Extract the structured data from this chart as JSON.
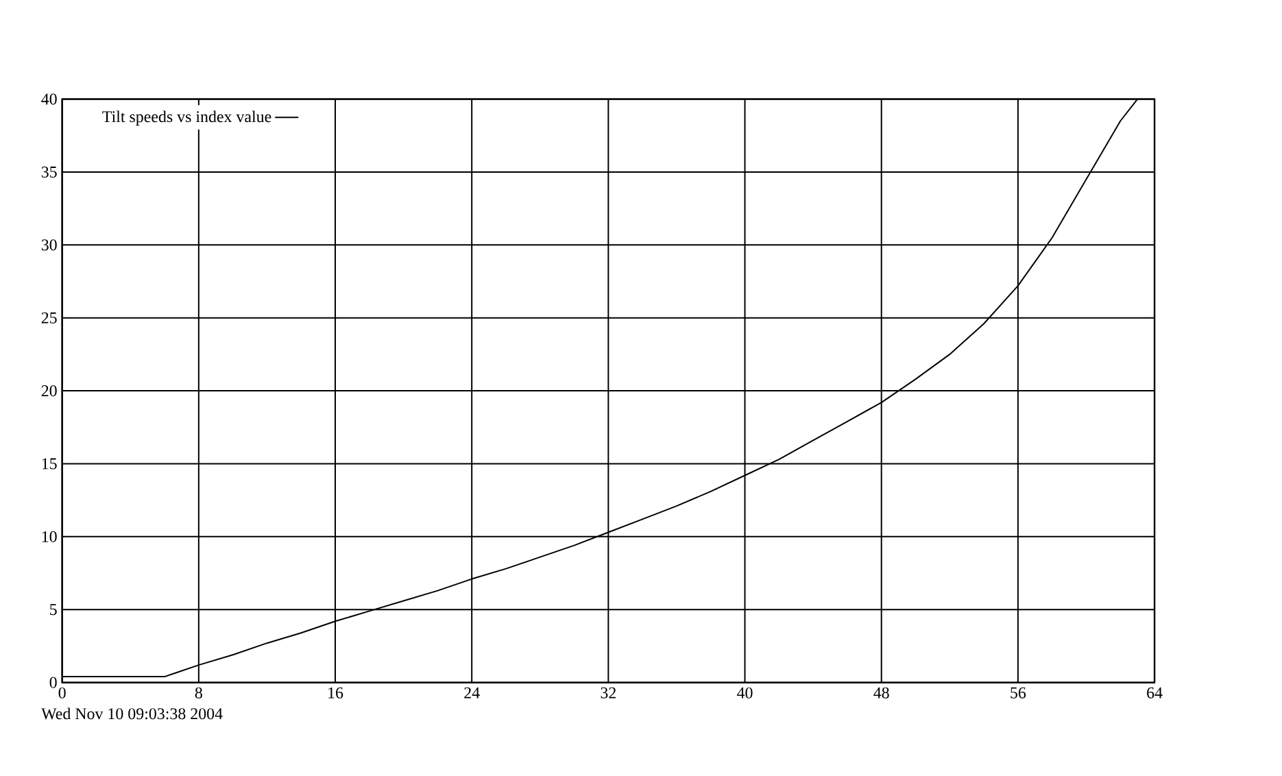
{
  "chart_data": {
    "type": "line",
    "x": [
      0,
      6,
      8,
      10,
      12,
      14,
      16,
      18,
      20,
      22,
      24,
      26,
      28,
      30,
      32,
      34,
      36,
      38,
      40,
      42,
      44,
      46,
      48,
      50,
      52,
      54,
      56,
      58,
      60,
      62,
      63
    ],
    "series": [
      {
        "name": "Tilt speeds vs index value",
        "color": "#000000",
        "values": [
          0.4,
          0.4,
          1.2,
          1.9,
          2.7,
          3.4,
          4.2,
          4.9,
          5.6,
          6.3,
          7.1,
          7.8,
          8.6,
          9.4,
          10.3,
          11.2,
          12.1,
          13.1,
          14.2,
          15.3,
          16.6,
          17.9,
          19.2,
          20.8,
          22.5,
          24.6,
          27.2,
          30.5,
          34.5,
          38.5,
          40
        ]
      }
    ],
    "xlim": [
      0,
      64
    ],
    "ylim": [
      0,
      40
    ],
    "xticks": [
      0,
      8,
      16,
      24,
      32,
      40,
      48,
      56,
      64
    ],
    "yticks": [
      0,
      5,
      10,
      15,
      20,
      25,
      30,
      35,
      40
    ],
    "grid": true,
    "legend": "top left",
    "marker": "none",
    "line_style": "solid",
    "annotations": [
      "Wed Nov 10 09:03:38 2004"
    ]
  }
}
